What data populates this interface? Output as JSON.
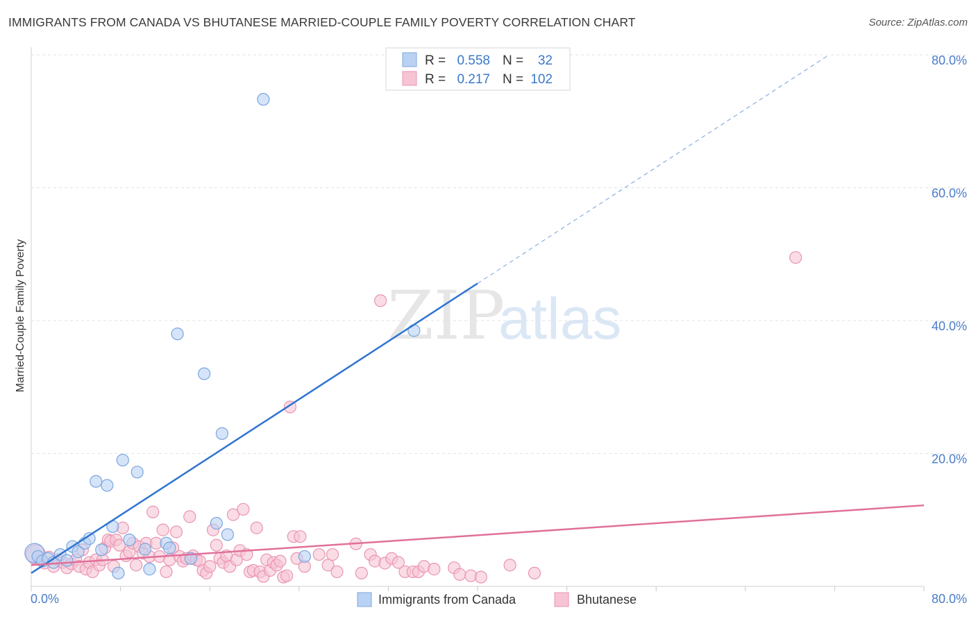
{
  "title": "IMMIGRANTS FROM CANADA VS BHUTANESE MARRIED-COUPLE FAMILY POVERTY CORRELATION CHART",
  "source": "Source: ZipAtlas.com",
  "watermark": {
    "zip": "ZIP",
    "atlas": "atlas"
  },
  "colors": {
    "blue_fill": "#b9d2f3",
    "blue_stroke": "#7aa5df",
    "blue_line": "#2f74d0",
    "pink_fill": "#f7c4d4",
    "pink_stroke": "#e995b2",
    "pink_line": "#e0709a",
    "grid": "#e3e3e3",
    "tick_label": "#4a7cc9"
  },
  "legend": {
    "rows": [
      {
        "r_label": "R =",
        "r_value": "0.558",
        "n_label": "N =",
        "n_value": "32"
      },
      {
        "r_label": "R =",
        "r_value": "0.217",
        "n_label": "N =",
        "n_value": "102"
      }
    ]
  },
  "chart_data": {
    "type": "scatter",
    "title": "IMMIGRANTS FROM CANADA VS BHUTANESE MARRIED-COUPLE FAMILY POVERTY CORRELATION CHART",
    "xlabel": "",
    "ylabel": "Married-Couple Family Poverty",
    "xlim": [
      0,
      80
    ],
    "ylim": [
      0,
      80
    ],
    "x_tick_labels": [
      "0.0%",
      "80.0%"
    ],
    "y_ticks": [
      20,
      40,
      60,
      80
    ],
    "y_tick_labels": [
      "20.0%",
      "40.0%",
      "60.0%",
      "80.0%"
    ],
    "grid": true,
    "series": [
      {
        "name": "Immigrants from Canada",
        "color": "#b9d2f3",
        "R": 0.558,
        "N": 32,
        "trend": {
          "x0": 0,
          "y0": 2.0,
          "x1": 40,
          "y1": 45.6,
          "dash_to_x": 71.5,
          "dash_to_y": 80
        },
        "points": [
          [
            0.3,
            5.0
          ],
          [
            0.6,
            4.5
          ],
          [
            1.0,
            3.8
          ],
          [
            1.5,
            4.2
          ],
          [
            2.0,
            3.6
          ],
          [
            2.6,
            4.8
          ],
          [
            3.2,
            3.9
          ],
          [
            3.7,
            6.0
          ],
          [
            4.2,
            5.2
          ],
          [
            4.8,
            6.5
          ],
          [
            5.2,
            7.2
          ],
          [
            5.8,
            15.8
          ],
          [
            6.3,
            5.5
          ],
          [
            6.8,
            15.2
          ],
          [
            7.3,
            9.0
          ],
          [
            7.8,
            2.0
          ],
          [
            8.2,
            19.0
          ],
          [
            8.8,
            7.0
          ],
          [
            9.5,
            17.2
          ],
          [
            10.2,
            5.6
          ],
          [
            10.6,
            2.6
          ],
          [
            12.1,
            6.5
          ],
          [
            12.4,
            5.8
          ],
          [
            13.1,
            38.0
          ],
          [
            14.3,
            4.2
          ],
          [
            15.5,
            32.0
          ],
          [
            16.6,
            9.5
          ],
          [
            17.1,
            23.0
          ],
          [
            17.6,
            7.8
          ],
          [
            20.8,
            73.3
          ],
          [
            24.5,
            4.5
          ],
          [
            34.3,
            38.5
          ]
        ]
      },
      {
        "name": "Bhutanese",
        "color": "#f7c4d4",
        "R": 0.217,
        "N": 102,
        "trend": {
          "x0": 0,
          "y0": 3.2,
          "x1": 80,
          "y1": 12.2
        },
        "points": [
          [
            0.4,
            4.8
          ],
          [
            0.8,
            4.0
          ],
          [
            1.2,
            3.5
          ],
          [
            1.6,
            4.4
          ],
          [
            2.0,
            3.0
          ],
          [
            2.4,
            4.0
          ],
          [
            2.8,
            3.6
          ],
          [
            3.2,
            2.8
          ],
          [
            3.6,
            3.4
          ],
          [
            4.0,
            4.0
          ],
          [
            4.3,
            3.0
          ],
          [
            4.6,
            5.5
          ],
          [
            4.9,
            2.6
          ],
          [
            5.2,
            3.6
          ],
          [
            5.5,
            2.2
          ],
          [
            5.8,
            4.0
          ],
          [
            6.1,
            3.2
          ],
          [
            6.4,
            4.0
          ],
          [
            6.6,
            5.8
          ],
          [
            6.9,
            7.0
          ],
          [
            7.1,
            6.8
          ],
          [
            7.4,
            3.0
          ],
          [
            7.6,
            7.0
          ],
          [
            7.9,
            6.2
          ],
          [
            8.2,
            8.8
          ],
          [
            8.5,
            4.6
          ],
          [
            8.8,
            5.2
          ],
          [
            9.1,
            6.5
          ],
          [
            9.4,
            3.2
          ],
          [
            9.7,
            6.0
          ],
          [
            10.0,
            5.0
          ],
          [
            10.3,
            6.5
          ],
          [
            10.6,
            4.5
          ],
          [
            10.9,
            11.2
          ],
          [
            11.2,
            6.5
          ],
          [
            11.5,
            4.5
          ],
          [
            11.8,
            8.5
          ],
          [
            12.1,
            2.2
          ],
          [
            12.4,
            4.0
          ],
          [
            12.7,
            5.8
          ],
          [
            13.0,
            8.2
          ],
          [
            13.3,
            4.5
          ],
          [
            13.6,
            3.8
          ],
          [
            13.9,
            4.2
          ],
          [
            14.2,
            10.5
          ],
          [
            14.5,
            4.6
          ],
          [
            14.8,
            4.0
          ],
          [
            15.1,
            3.8
          ],
          [
            15.4,
            2.4
          ],
          [
            15.7,
            2.0
          ],
          [
            16.0,
            3.0
          ],
          [
            16.3,
            8.5
          ],
          [
            16.6,
            6.2
          ],
          [
            16.9,
            4.2
          ],
          [
            17.2,
            3.6
          ],
          [
            17.5,
            4.6
          ],
          [
            17.8,
            3.0
          ],
          [
            18.1,
            10.8
          ],
          [
            18.4,
            4.0
          ],
          [
            18.7,
            5.4
          ],
          [
            19.0,
            11.6
          ],
          [
            19.3,
            4.8
          ],
          [
            19.6,
            2.2
          ],
          [
            19.9,
            2.4
          ],
          [
            20.2,
            8.8
          ],
          [
            20.5,
            2.2
          ],
          [
            20.8,
            1.5
          ],
          [
            21.1,
            4.0
          ],
          [
            21.4,
            2.4
          ],
          [
            21.7,
            3.6
          ],
          [
            22.0,
            3.2
          ],
          [
            22.3,
            3.8
          ],
          [
            22.6,
            1.4
          ],
          [
            22.9,
            1.6
          ],
          [
            23.2,
            27.0
          ],
          [
            23.5,
            7.5
          ],
          [
            23.8,
            4.2
          ],
          [
            24.1,
            7.5
          ],
          [
            24.5,
            3.0
          ],
          [
            25.8,
            4.8
          ],
          [
            26.6,
            3.2
          ],
          [
            27.0,
            4.8
          ],
          [
            27.4,
            2.2
          ],
          [
            29.1,
            6.4
          ],
          [
            29.6,
            2.0
          ],
          [
            30.4,
            4.8
          ],
          [
            30.8,
            3.8
          ],
          [
            31.3,
            43.0
          ],
          [
            31.7,
            3.5
          ],
          [
            32.3,
            4.2
          ],
          [
            32.9,
            3.6
          ],
          [
            33.5,
            2.2
          ],
          [
            34.2,
            2.2
          ],
          [
            34.7,
            2.2
          ],
          [
            35.2,
            3.0
          ],
          [
            36.1,
            2.6
          ],
          [
            37.9,
            2.8
          ],
          [
            38.4,
            1.8
          ],
          [
            39.4,
            1.6
          ],
          [
            40.3,
            1.4
          ],
          [
            42.9,
            3.2
          ],
          [
            45.1,
            2.0
          ],
          [
            68.5,
            49.5
          ]
        ]
      }
    ]
  },
  "bottom_legend": {
    "items": [
      {
        "label": "Immigrants from Canada"
      },
      {
        "label": "Bhutanese"
      }
    ]
  }
}
